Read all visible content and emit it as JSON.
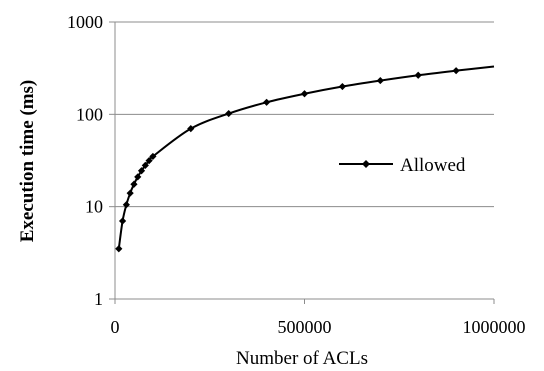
{
  "chart_data": {
    "type": "line",
    "title": "",
    "xlabel": "Number of ACLs",
    "ylabel": "Execution time (ms)",
    "xlim": [
      0,
      1000000
    ],
    "ylim": [
      1,
      1000
    ],
    "y_scale": "log",
    "grid": "horizontal",
    "legend_position": "right",
    "x_ticks": [
      "0",
      "500000",
      "1000000"
    ],
    "y_ticks": [
      "1",
      "10",
      "100",
      "1000"
    ],
    "x_tick_values": [
      0,
      500000,
      1000000
    ],
    "y_tick_values": [
      1,
      10,
      100,
      1000
    ],
    "series": [
      {
        "name": "Allowed",
        "color": "#000000",
        "marker": "diamond",
        "x": [
          10000,
          20000,
          30000,
          40000,
          50000,
          60000,
          70000,
          80000,
          90000,
          100000,
          200000,
          300000,
          400000,
          500000,
          600000,
          700000,
          800000,
          900000,
          1000000
        ],
        "y": [
          3.5,
          7,
          10.5,
          14,
          17.5,
          21,
          24.5,
          28,
          31.5,
          35,
          70,
          102,
          135,
          167,
          200,
          232,
          265,
          297,
          330
        ],
        "marked": [
          true,
          true,
          true,
          true,
          true,
          true,
          true,
          true,
          true,
          true,
          true,
          true,
          true,
          true,
          true,
          true,
          true,
          true,
          false
        ]
      }
    ]
  }
}
